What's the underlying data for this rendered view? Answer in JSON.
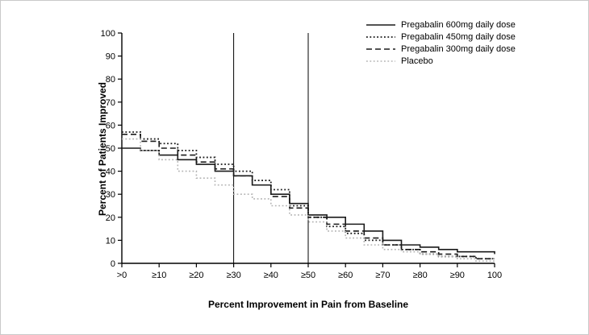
{
  "figure": {
    "background": "#ffffff",
    "border_color": "#c9c9c9"
  },
  "chart_data": {
    "type": "line",
    "subtype": "step-cumulative-responder",
    "title": "",
    "xlabel": "Percent Improvement in Pain from Baseline",
    "ylabel": "Percent of Patients Improved",
    "xlim": [
      0,
      100
    ],
    "ylim": [
      0,
      100
    ],
    "grid": "off",
    "legend_position": "top-right",
    "x_tick_values": [
      0,
      10,
      20,
      30,
      40,
      50,
      60,
      70,
      80,
      90,
      100
    ],
    "x_tick_labels": [
      ">0",
      "≥10",
      "≥20",
      "≥30",
      "≥40",
      "≥50",
      "≥60",
      "≥70",
      "≥80",
      "≥90",
      "100"
    ],
    "y_tick_values": [
      0,
      10,
      20,
      30,
      40,
      50,
      60,
      70,
      80,
      90,
      100
    ],
    "reference_lines_x": [
      30,
      50
    ],
    "reference_line_color": "#000000",
    "x": [
      0,
      5,
      10,
      15,
      20,
      25,
      30,
      35,
      40,
      45,
      50,
      55,
      60,
      65,
      70,
      75,
      80,
      85,
      90,
      95,
      100
    ],
    "series": [
      {
        "id": "pregabalin-600",
        "name": "Pregabalin 600mg daily dose",
        "style": "solid",
        "color": "#1a1a1a",
        "width": 1.6,
        "values": [
          50,
          49,
          47,
          45,
          43,
          40,
          38,
          34,
          30,
          26,
          21,
          20,
          17,
          14,
          10,
          8,
          7,
          6,
          5,
          5,
          4
        ]
      },
      {
        "id": "pregabalin-450",
        "name": "Pregabalin 450mg daily dose",
        "style": "dotted",
        "color": "#1a1a1a",
        "width": 1.8,
        "values": [
          57,
          54,
          52,
          49,
          46,
          43,
          40,
          36,
          32,
          25,
          20,
          16,
          13,
          10,
          8,
          6,
          4,
          3,
          3,
          2,
          2
        ]
      },
      {
        "id": "pregabalin-300",
        "name": "Pregabalin 300mg daily dose",
        "style": "dashed",
        "color": "#1a1a1a",
        "width": 1.6,
        "values": [
          56,
          53,
          50,
          47,
          44,
          41,
          38,
          34,
          29,
          24,
          20,
          17,
          14,
          11,
          8,
          6,
          5,
          4,
          3,
          2,
          2
        ]
      },
      {
        "id": "placebo",
        "name": "Placebo",
        "style": "dotted",
        "color": "#b3b3b3",
        "width": 1.6,
        "values": [
          54,
          49,
          45,
          40,
          37,
          34,
          30,
          28,
          25,
          21,
          18,
          14,
          11,
          8,
          6,
          5,
          4,
          3,
          2,
          1,
          1
        ]
      }
    ]
  }
}
